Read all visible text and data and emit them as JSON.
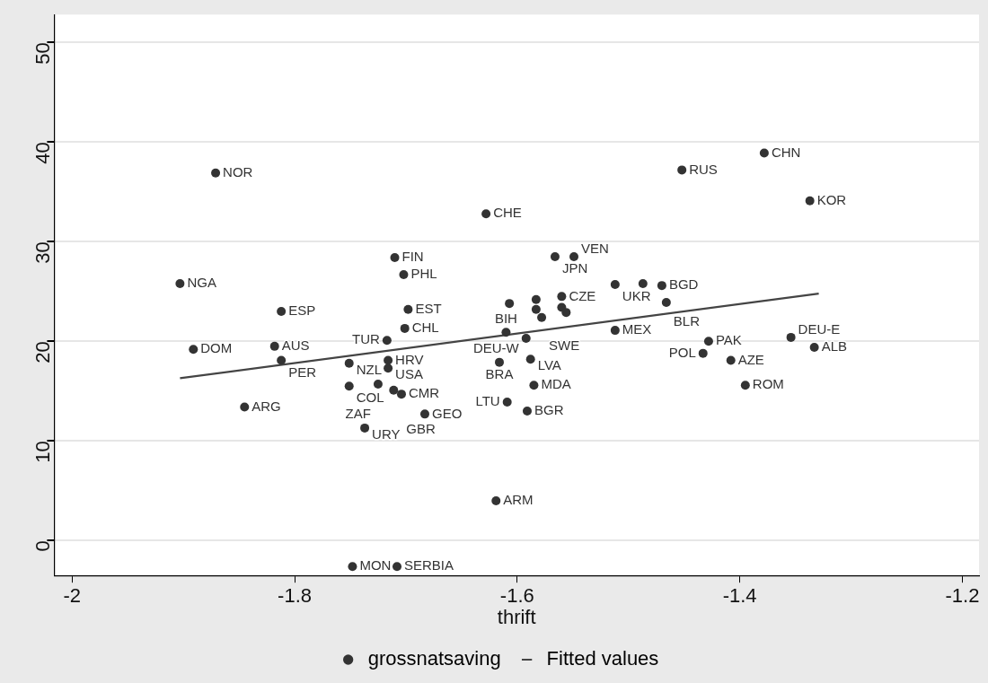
{
  "chart_data": {
    "type": "scatter",
    "xlabel": "thrift",
    "xlim": [
      -2.016,
      -1.185
    ],
    "xticks": [
      -2,
      -1.8,
      -1.6,
      -1.4,
      -1.2
    ],
    "ylim": [
      -3.5,
      52.8
    ],
    "yticks": [
      0,
      10,
      20,
      30,
      40,
      50
    ],
    "grid": "y",
    "legend": "bottom",
    "marker": "circle",
    "series": [
      {
        "name": "grossnatsaving",
        "type": "scatter",
        "color": "#333333",
        "x": [
          -1.871,
          -1.903,
          -1.812,
          -1.891,
          -1.818,
          -1.812,
          -1.845,
          -1.71,
          -1.702,
          -1.698,
          -1.701,
          -1.717,
          -1.716,
          -1.716,
          -1.751,
          -1.751,
          -1.725,
          -1.711,
          -1.704,
          -1.683,
          -1.737,
          -1.748,
          -1.708,
          -1.619,
          -1.628,
          -1.566,
          -1.549,
          -1.607,
          -1.583,
          -1.56,
          -1.583,
          -1.56,
          -1.578,
          -1.556,
          -1.452,
          -1.378,
          -1.337,
          -1.512,
          -1.487,
          -1.47,
          -1.466,
          -1.512,
          -1.61,
          -1.592,
          -1.588,
          -1.616,
          -1.585,
          -1.609,
          -1.591,
          -1.428,
          -1.433,
          -1.408,
          -1.354,
          -1.333,
          -1.395
        ],
        "values": [
          36.9,
          25.8,
          23.0,
          19.2,
          19.5,
          18.1,
          13.4,
          28.4,
          26.7,
          23.2,
          21.3,
          20.1,
          18.1,
          17.3,
          17.8,
          15.5,
          15.7,
          15.1,
          14.7,
          12.7,
          11.3,
          -2.6,
          -2.6,
          4.0,
          32.8,
          28.5,
          28.5,
          23.8,
          24.2,
          24.5,
          23.2,
          23.4,
          22.4,
          22.9,
          37.2,
          38.9,
          34.1,
          25.7,
          25.8,
          25.6,
          23.9,
          21.1,
          20.9,
          20.3,
          18.2,
          17.9,
          15.6,
          13.9,
          13.0,
          20.0,
          18.8,
          18.1,
          20.4,
          19.4,
          15.6
        ]
      },
      {
        "name": "Fitted values",
        "type": "line",
        "color": "#444444",
        "marker": "none",
        "x": [
          -1.903,
          -1.329
        ],
        "values": [
          16.3,
          24.8
        ]
      }
    ],
    "annotations": [
      {
        "text": "NOR",
        "x": -1.871,
        "y": 36.9
      },
      {
        "text": "NGA",
        "x": -1.903,
        "y": 25.8
      },
      {
        "text": "ESP",
        "x": -1.812,
        "y": 23.0
      },
      {
        "text": "DOM",
        "x": -1.891,
        "y": 19.2
      },
      {
        "text": "AUS",
        "x": -1.818,
        "y": 19.5
      },
      {
        "text": "PER",
        "x": -1.812,
        "y": 18.1
      },
      {
        "text": "ARG",
        "x": -1.845,
        "y": 13.4
      },
      {
        "text": "FIN",
        "x": -1.71,
        "y": 28.4
      },
      {
        "text": "PHL",
        "x": -1.702,
        "y": 26.7
      },
      {
        "text": "EST",
        "x": -1.698,
        "y": 23.2
      },
      {
        "text": "CHL",
        "x": -1.701,
        "y": 21.3
      },
      {
        "text": "TUR",
        "x": -1.717,
        "y": 20.1
      },
      {
        "text": "HRV",
        "x": -1.716,
        "y": 18.1
      },
      {
        "text": "USA",
        "x": -1.716,
        "y": 17.3
      },
      {
        "text": "NZL",
        "x": -1.751,
        "y": 17.8
      },
      {
        "text": "COL",
        "x": -1.751,
        "y": 15.5
      },
      {
        "text": "ZAF",
        "x": -1.725,
        "y": 15.7
      },
      {
        "text": "GBR",
        "x": -1.711,
        "y": 15.1
      },
      {
        "text": "CMR",
        "x": -1.704,
        "y": 14.7
      },
      {
        "text": "GEO",
        "x": -1.683,
        "y": 12.7
      },
      {
        "text": "URY",
        "x": -1.737,
        "y": 11.3
      },
      {
        "text": "MON",
        "x": -1.748,
        "y": -2.6
      },
      {
        "text": "SERBIA",
        "x": -1.708,
        "y": -2.6
      },
      {
        "text": "ARM",
        "x": -1.619,
        "y": 4.0
      },
      {
        "text": "CHE",
        "x": -1.628,
        "y": 32.8
      },
      {
        "text": "JPN",
        "x": -1.566,
        "y": 28.5
      },
      {
        "text": "VEN",
        "x": -1.549,
        "y": 28.5
      },
      {
        "text": "CZE",
        "x": -1.56,
        "y": 24.5
      },
      {
        "text": "SWE",
        "x": -1.578,
        "y": 22.4
      },
      {
        "text": "RUS",
        "x": -1.452,
        "y": 37.2
      },
      {
        "text": "CHN",
        "x": -1.378,
        "y": 38.9
      },
      {
        "text": "KOR",
        "x": -1.337,
        "y": 34.1
      },
      {
        "text": "UKR",
        "x": -1.512,
        "y": 25.7
      },
      {
        "text": "BGD",
        "x": -1.47,
        "y": 25.6
      },
      {
        "text": "BLR",
        "x": -1.466,
        "y": 23.9
      },
      {
        "text": "MEX",
        "x": -1.512,
        "y": 21.1
      },
      {
        "text": "BIH",
        "x": -1.61,
        "y": 20.9
      },
      {
        "text": "DEU-W",
        "x": -1.592,
        "y": 20.3
      },
      {
        "text": "LVA",
        "x": -1.588,
        "y": 18.2
      },
      {
        "text": "BRA",
        "x": -1.616,
        "y": 17.9
      },
      {
        "text": "MDA",
        "x": -1.585,
        "y": 15.6
      },
      {
        "text": "LTU",
        "x": -1.609,
        "y": 13.9
      },
      {
        "text": "BGR",
        "x": -1.591,
        "y": 13.0
      },
      {
        "text": "PAK",
        "x": -1.428,
        "y": 20.0
      },
      {
        "text": "POL",
        "x": -1.433,
        "y": 18.8
      },
      {
        "text": "AZE",
        "x": -1.408,
        "y": 18.1
      },
      {
        "text": "DEU-E",
        "x": -1.354,
        "y": 20.4
      },
      {
        "text": "ALB",
        "x": -1.333,
        "y": 19.4
      },
      {
        "text": "ROM",
        "x": -1.395,
        "y": 15.6
      }
    ]
  }
}
